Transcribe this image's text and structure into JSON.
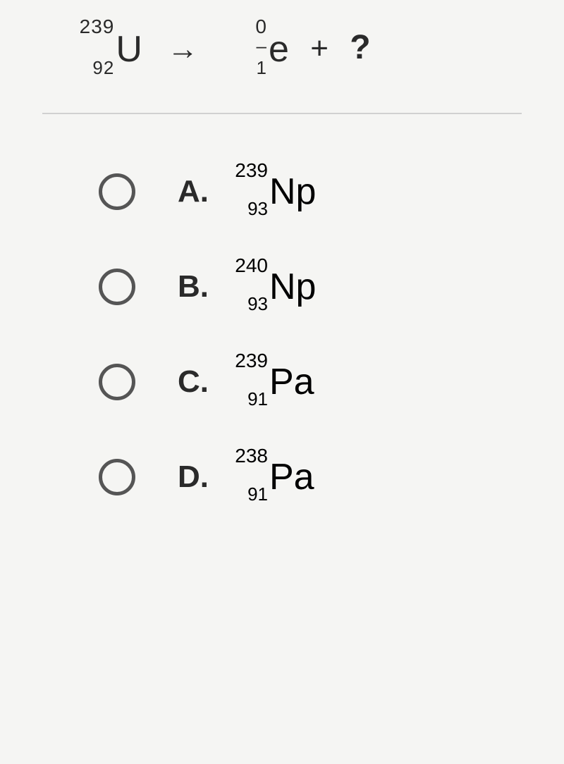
{
  "equation": {
    "reactant": {
      "mass": "239",
      "atomic": "92",
      "symbol": "U"
    },
    "arrow": "→",
    "product1": {
      "mass": "0",
      "atomic": "–1",
      "symbol": "e"
    },
    "plus": "+",
    "unknown": "?"
  },
  "options": [
    {
      "label": "A.",
      "mass": "239",
      "atomic": "93",
      "symbol": "Np"
    },
    {
      "label": "B.",
      "mass": "240",
      "atomic": "93",
      "symbol": "Np"
    },
    {
      "label": "C.",
      "mass": "239",
      "atomic": "91",
      "symbol": "Pa"
    },
    {
      "label": "D.",
      "mass": "238",
      "atomic": "91",
      "symbol": "Pa"
    }
  ],
  "colors": {
    "background": "#f5f5f3",
    "text": "#2a2a2a",
    "divider": "#d0d0d0",
    "radio_border": "#555555"
  },
  "typography": {
    "element_fontsize": 52,
    "mass_fontsize": 28,
    "atomic_fontsize": 26,
    "label_fontsize": 44
  }
}
